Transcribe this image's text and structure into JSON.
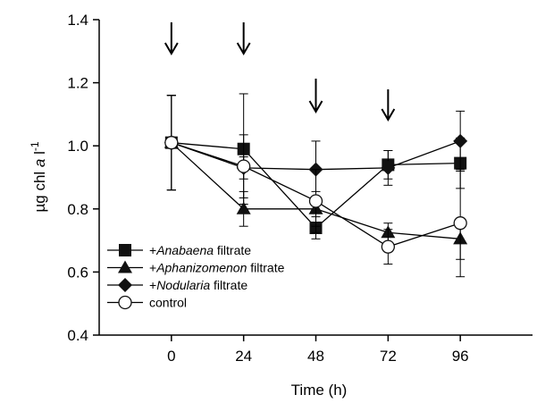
{
  "chart_data": {
    "type": "line",
    "xlabel": "Time (h)",
    "ylabel": {
      "prefix": "µg chl ",
      "italic": "a",
      "unit": " l",
      "exp": "-1"
    },
    "x": [
      0,
      24,
      48,
      72,
      96
    ],
    "xlim": [
      -24,
      120
    ],
    "ylim": [
      0.4,
      1.4
    ],
    "xticks": [
      "0",
      "24",
      "48",
      "72",
      "96"
    ],
    "yticks": [
      "0.4",
      "0.6",
      "0.8",
      "1.0",
      "1.2",
      "1.4"
    ],
    "arrows_at_x": [
      0,
      24,
      48,
      72
    ],
    "legend_position": "bottom-left",
    "series": [
      {
        "name": "+Anabaena filtrate",
        "name_italic": "Anabaena",
        "name_prefix": "+",
        "name_suffix": " filtrate",
        "marker": "square",
        "values": [
          1.01,
          0.99,
          0.74,
          0.94,
          0.945
        ],
        "errors": [
          0.15,
          0.175,
          0.035,
          0.045,
          0.08
        ]
      },
      {
        "name": "+Aphanizomenon filtrate",
        "name_italic": "Aphanizomenon",
        "name_prefix": "+",
        "name_suffix": " filtrate",
        "marker": "triangle",
        "values": [
          1.01,
          0.8,
          0.8,
          0.725,
          0.705
        ],
        "errors": [
          0.15,
          0.055,
          0.055,
          0.03,
          0.065
        ]
      },
      {
        "name": "+Nodularia filtrate",
        "name_italic": "Nodularia",
        "name_prefix": "+",
        "name_suffix": " filtrate",
        "marker": "diamond",
        "values": [
          1.01,
          0.93,
          0.925,
          0.93,
          1.015
        ],
        "errors": [
          0.15,
          0.035,
          0.09,
          0.055,
          0.095
        ]
      },
      {
        "name": "control",
        "name_italic": "",
        "name_prefix": "control",
        "name_suffix": "",
        "marker": "circle",
        "values": [
          1.01,
          0.935,
          0.825,
          0.68,
          0.755
        ],
        "errors": [
          0.15,
          0.1,
          0.1,
          0.055,
          0.17
        ]
      }
    ]
  }
}
